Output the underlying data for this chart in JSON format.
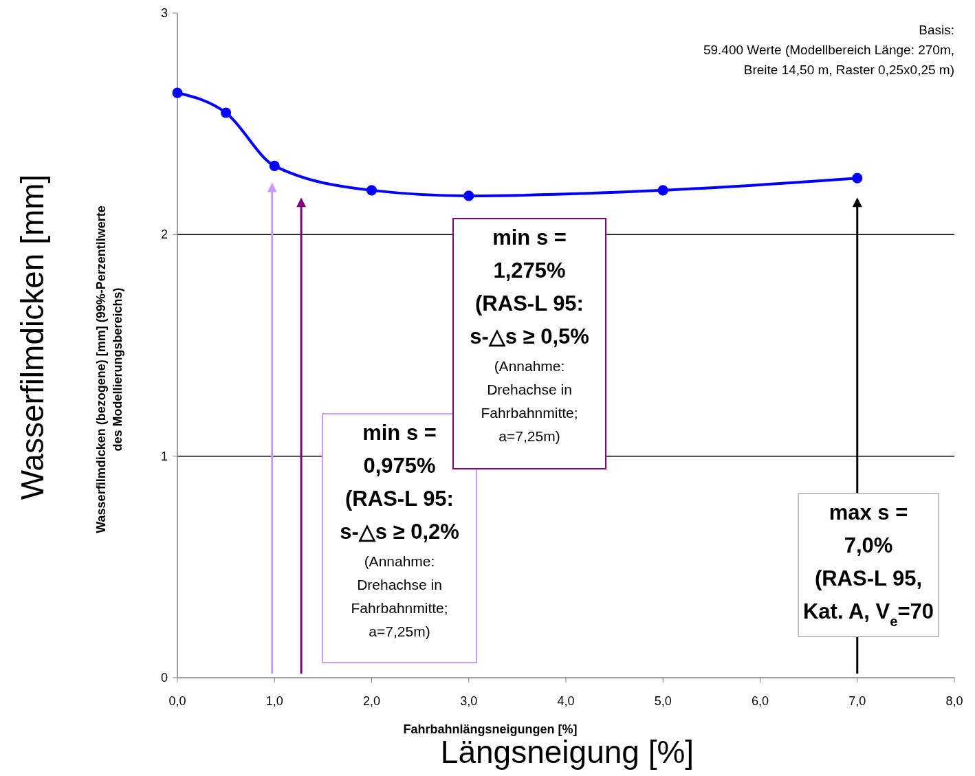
{
  "chart_data": {
    "type": "line",
    "xlabel": "Fahrbahnlängsneigungen [%]",
    "ylabel": "Wasserfilmdicken (bezogene) [mm] (99%-Perzentilwerte des Modellierungsbereichs)",
    "x": [
      0,
      0.5,
      1,
      2,
      3,
      5,
      7
    ],
    "series": [
      {
        "color": "#0000ff",
        "values": [
          2.64,
          2.55,
          2.31,
          2.2,
          2.175,
          2.2,
          2.255
        ]
      }
    ],
    "xlim": [
      0,
      8
    ],
    "xticks": [
      {
        "value": 0,
        "label": "0,0"
      },
      {
        "value": 1,
        "label": "1,0"
      },
      {
        "value": 2,
        "label": "2,0"
      },
      {
        "value": 3,
        "label": "3,0"
      },
      {
        "value": 4,
        "label": "4,0"
      },
      {
        "value": 5,
        "label": "5,0"
      },
      {
        "value": 6,
        "label": "6,0"
      },
      {
        "value": 7,
        "label": "7,0"
      },
      {
        "value": 8,
        "label": "8,0"
      }
    ],
    "ylim": [
      0,
      3
    ],
    "yticks": [
      0,
      1,
      2,
      3
    ],
    "grid": "y",
    "marker": "circle",
    "line_style": "solid",
    "ref_lines": [
      {
        "axis": "x",
        "value": 0.975,
        "color": "#cc99ff"
      },
      {
        "axis": "x",
        "value": 1.275,
        "color": "#800080"
      },
      {
        "axis": "x",
        "value": 7.0,
        "color": "#000000"
      }
    ],
    "annotations": [
      "Basis:\n59.400 Werte (Modellbereich Länge: 270m,\nBreite 14,50 m, Raster 0,25x0,25 m)",
      "min s =\n0,975%\n(RAS-L 95:\ns-△s ≥ 0,2%\n(Annahme:\nDrehachse in\nFahrbahnmitte;\na=7,25m)",
      "min s =\n1,275%\n(RAS-L 95:\ns-△s ≥ 0,5%\n(Annahme:\nDrehachse in\nFahrbahnmitte;\na=7,25m)",
      "max s =\n7,0%\n(RAS-L 95,\nKat. A, V$_{e}$=70",
      "Wasserfilmdicken [mm]",
      "Längsneigung [%]"
    ]
  }
}
